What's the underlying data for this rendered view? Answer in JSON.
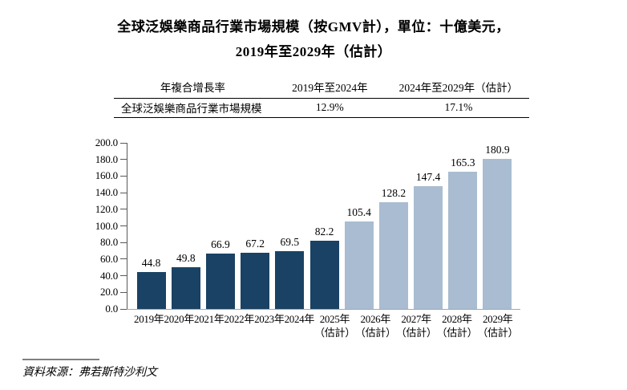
{
  "title": {
    "line1": "全球泛娛樂商品行業市場規模（按GMV計），單位：十億美元，",
    "line2": "2019年至2029年（估計）"
  },
  "table": {
    "headers": [
      "年複合增長率",
      "2019年至2024年",
      "2024年至2029年（估計）"
    ],
    "rows": [
      {
        "label": "全球泛娛樂商品行業市場規模",
        "values": [
          "12.9%",
          "17.1%"
        ]
      }
    ]
  },
  "chart_data": {
    "type": "bar",
    "title": "全球泛娛樂商品行業市場規模（按GMV計），單位：十億美元，2019年至2029年（估計）",
    "unit": "十億美元",
    "xlabel": "",
    "ylabel": "",
    "categories": [
      "2019年",
      "2020年",
      "2021年",
      "2022年",
      "2023年",
      "2024年",
      "2025年",
      "2026年",
      "2027年",
      "2028年",
      "2029年"
    ],
    "category_notes": [
      "",
      "",
      "",
      "",
      "",
      "",
      "（估計）",
      "（估計）",
      "（估計）",
      "（估計）",
      "（估計）"
    ],
    "values": [
      44.8,
      49.8,
      66.9,
      67.2,
      69.5,
      82.2,
      105.4,
      128.2,
      147.4,
      165.3,
      180.9
    ],
    "segments": [
      "actual",
      "actual",
      "actual",
      "actual",
      "actual",
      "actual",
      "estimate",
      "estimate",
      "estimate",
      "estimate",
      "estimate"
    ],
    "colors": {
      "actual": "#1a4264",
      "estimate": "#a9bcd1"
    },
    "ylim": [
      0,
      200
    ],
    "yticks": [
      "0.0",
      "20.0",
      "40.0",
      "60.0",
      "80.0",
      "100.0",
      "120.0",
      "140.0",
      "160.0",
      "180.0",
      "200.0"
    ],
    "grid": false,
    "legend": false
  },
  "source": {
    "text": "資料來源：弗若斯特沙利文"
  }
}
